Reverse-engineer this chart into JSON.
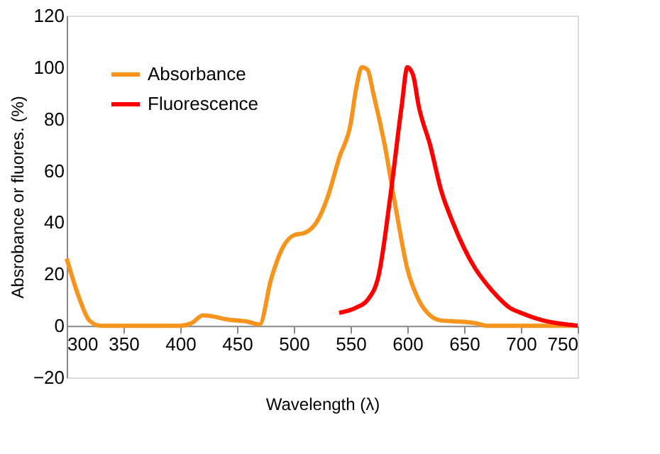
{
  "chart_data": {
    "type": "line",
    "xlabel": "Wavelength (λ)",
    "ylabel": "Absrobance or fluores. (%)",
    "xlim": [
      300,
      750
    ],
    "xticks": [
      300,
      350,
      400,
      450,
      500,
      550,
      600,
      650,
      700,
      750
    ],
    "ylim": [
      -20,
      120
    ],
    "yticks": [
      -20,
      0,
      20,
      40,
      60,
      80,
      100,
      120
    ],
    "grid": false,
    "legend": "top left",
    "marker": "none",
    "line_style": "solid",
    "series": [
      {
        "name": "Absorbance",
        "color": "#f7941d",
        "x": [
          300,
          310,
          320,
          330,
          350,
          400,
          410,
          420,
          430,
          440,
          460,
          470,
          480,
          490,
          500,
          510,
          520,
          530,
          540,
          550,
          555,
          560,
          565,
          570,
          580,
          590,
          600,
          610,
          620,
          630,
          650,
          660,
          670,
          700,
          750
        ],
        "values": [
          26,
          12,
          2,
          0,
          0,
          0,
          1,
          4,
          3.5,
          2.5,
          1.5,
          0.5,
          18,
          30,
          35,
          36,
          40,
          50,
          65,
          78,
          92,
          100,
          99,
          90,
          70,
          45,
          22,
          10,
          4,
          2,
          1.5,
          1,
          0,
          0,
          0
        ]
      },
      {
        "name": "Fluorescence",
        "color": "#ff0000",
        "x": [
          540,
          555,
          565,
          575,
          585,
          595,
          600,
          605,
          610,
          620,
          630,
          640,
          650,
          660,
          670,
          680,
          690,
          700,
          720,
          740,
          750
        ],
        "values": [
          5,
          7,
          10,
          20,
          50,
          85,
          100,
          97,
          85,
          70,
          52,
          40,
          30,
          22,
          16,
          11,
          7,
          5,
          2,
          0.5,
          0
        ]
      }
    ]
  }
}
